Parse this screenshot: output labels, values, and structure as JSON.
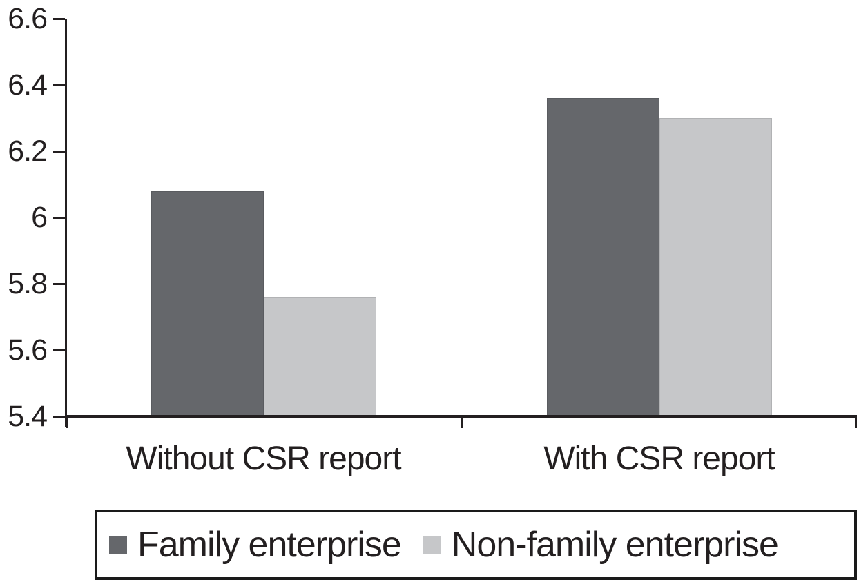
{
  "figure": {
    "background": "#ffffff",
    "text_color": "#231f20",
    "axis_color": "#231f20"
  },
  "chart_data": {
    "type": "bar",
    "categories": [
      "Without CSR report",
      "With CSR report"
    ],
    "series": [
      {
        "name": "Family enterprise",
        "color": "#65676b",
        "values": [
          6.08,
          6.36
        ]
      },
      {
        "name": "Non-family enterprise",
        "color": "#c6c7c9",
        "values": [
          5.76,
          6.3
        ]
      }
    ],
    "ylim": [
      5.4,
      6.6
    ],
    "ytick_values": [
      6.6,
      6.4,
      6.2,
      6.0,
      5.8,
      5.6,
      5.4
    ],
    "ytick_labels": [
      "6.6",
      "6.4",
      "6.2",
      "6",
      "5.8",
      "5.6",
      "5.4"
    ],
    "grid": false,
    "legend_position": "bottom-boxed"
  }
}
